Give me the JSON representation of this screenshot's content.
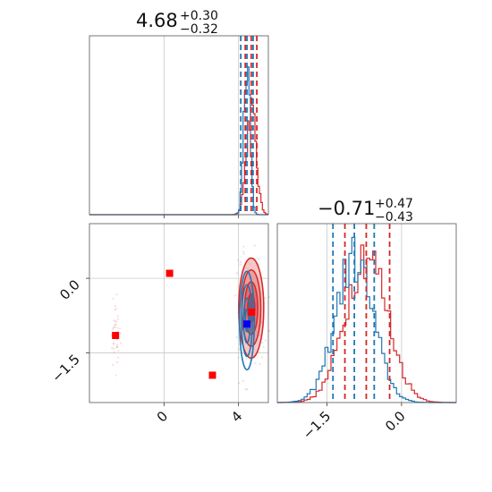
{
  "chart_data": {
    "type": "corner",
    "params": [
      {
        "title_value": "4.68",
        "title_plus": "+0.30",
        "title_minus": "−0.32",
        "range": [
          -4.0,
          5.6
        ],
        "ticks": [
          0,
          4
        ],
        "tick_labels": [
          "0",
          "4"
        ]
      },
      {
        "title_value": "−0.71",
        "title_plus": "+0.47",
        "title_minus": "−0.43",
        "range": [
          -2.5,
          1.1
        ],
        "ticks": [
          -1.5,
          0.0
        ],
        "tick_labels": [
          "−1.5",
          "0.0"
        ]
      }
    ],
    "colors": {
      "red": "#d62728",
      "blue": "#1f77b4",
      "square_red": "#ff0000",
      "square_blue": "#0000ff"
    },
    "hist1": {
      "blue": {
        "mean": 4.45,
        "sd": 0.16,
        "peak": 1.0
      },
      "red": {
        "mean": 4.68,
        "sd": 0.26,
        "peak": 0.65
      },
      "blue_quantiles": [
        4.12,
        4.45,
        4.78
      ],
      "red_quantiles": [
        4.36,
        4.68,
        4.98
      ]
    },
    "hist2": {
      "blue": {
        "mean": -0.95,
        "sd": 0.38,
        "peak": 0.88
      },
      "red": {
        "mean": -0.71,
        "sd": 0.42,
        "peak": 0.92
      },
      "blue_quantiles": [
        -1.38,
        -0.95,
        -0.55
      ],
      "red_quantiles": [
        -1.14,
        -0.71,
        -0.24
      ]
    },
    "scatter": {
      "red_squares": [
        [
          0.3,
          0.1
        ],
        [
          -2.6,
          -1.15
        ],
        [
          2.6,
          -1.95
        ],
        [
          4.7,
          -0.68
        ]
      ],
      "blue_square": [
        4.45,
        -0.92
      ],
      "red_contour": {
        "center": [
          4.68,
          -0.6
        ],
        "sx": 0.32,
        "sy": 0.48
      },
      "blue_contour": {
        "center": [
          4.45,
          -0.85
        ],
        "sx": 0.18,
        "sy": 0.45
      }
    }
  }
}
